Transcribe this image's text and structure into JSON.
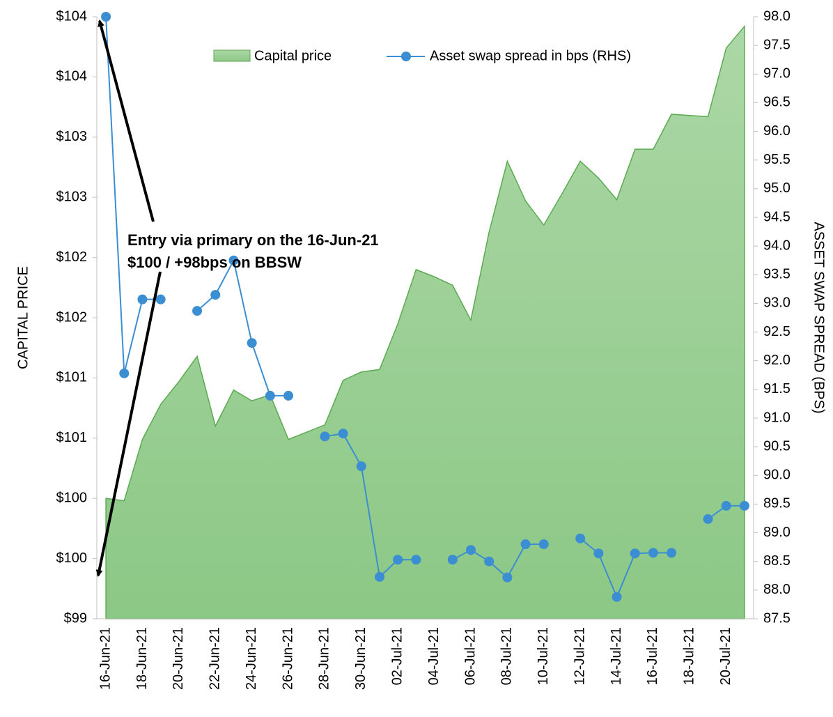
{
  "chart_data": {
    "type": "area-line",
    "categories": [
      "16-Jun-21",
      null,
      "18-Jun-21",
      null,
      "20-Jun-21",
      null,
      "22-Jun-21",
      null,
      "24-Jun-21",
      null,
      "26-Jun-21",
      null,
      "28-Jun-21",
      null,
      "30-Jun-21",
      null,
      "02-Jul-21",
      null,
      "04-Jul-21",
      null,
      "06-Jul-21",
      null,
      "08-Jul-21",
      null,
      "10-Jul-21",
      null,
      "12-Jul-21",
      null,
      "14-Jul-21",
      null,
      "16-Jul-21",
      null,
      "18-Jul-21",
      null,
      "20-Jul-21",
      null
    ],
    "series": [
      {
        "name": "Capital price",
        "color": "#8fca88",
        "values": [
          100.0,
          99.98,
          100.49,
          100.78,
          100.97,
          101.18,
          100.6,
          100.9,
          100.81,
          100.86,
          100.49,
          100.55,
          100.61,
          100.98,
          101.05,
          101.07,
          101.45,
          101.9,
          101.84,
          101.77,
          101.48,
          102.21,
          102.8,
          102.47,
          102.27,
          102.53,
          102.8,
          102.66,
          102.48,
          102.9,
          102.9,
          103.19,
          103.18,
          103.17,
          103.74,
          103.92
        ]
      },
      {
        "name": "Asset swap spread in bps (RHS)",
        "color": "#3b8ed2",
        "axis": "y2",
        "values": [
          98.0,
          91.78,
          93.07,
          93.07,
          null,
          92.87,
          93.15,
          93.75,
          92.31,
          91.39,
          91.39,
          null,
          90.68,
          90.73,
          90.16,
          88.23,
          88.53,
          88.53,
          null,
          88.53,
          88.7,
          88.5,
          88.22,
          88.8,
          88.8,
          null,
          88.9,
          88.64,
          87.88,
          88.64,
          88.65,
          88.65,
          null,
          89.24,
          89.47,
          89.47
        ]
      }
    ],
    "ylabel": "CAPITAL PRICE",
    "y2label": "ASSET SWAP SPREAD (BPS)",
    "ylim": [
      99,
      104
    ],
    "yticks": [
      {
        "value": 99,
        "label": "$99"
      },
      {
        "value": 99.5,
        "label": "$100"
      },
      {
        "value": 100,
        "label": "$100"
      },
      {
        "value": 100.5,
        "label": "$101"
      },
      {
        "value": 101,
        "label": "$101"
      },
      {
        "value": 101.5,
        "label": "$102"
      },
      {
        "value": 102,
        "label": "$102"
      },
      {
        "value": 102.5,
        "label": "$103"
      },
      {
        "value": 103,
        "label": "$103"
      },
      {
        "value": 103.5,
        "label": "$104"
      },
      {
        "value": 104,
        "label": "$104"
      }
    ],
    "y2lim": [
      87.5,
      98
    ],
    "y2ticks": [
      87.5,
      {
        "value": 88,
        "label": "88.0"
      },
      88.5,
      {
        "value": 89,
        "label": "89.0"
      },
      89.5,
      {
        "value": 90,
        "label": "90.0"
      },
      90.5,
      {
        "value": 91,
        "label": "91.0"
      },
      91.5,
      {
        "value": 92,
        "label": "92.0"
      },
      92.5,
      {
        "value": 93,
        "label": "93.0"
      },
      93.5,
      {
        "value": 94,
        "label": "94.0"
      },
      94.5,
      {
        "value": 95,
        "label": "95.0"
      },
      95.5,
      {
        "value": 96,
        "label": "96.0"
      },
      96.5,
      {
        "value": 97,
        "label": "97.0"
      },
      97.5,
      {
        "value": 98,
        "label": "98.0"
      }
    ],
    "annotations": [
      "Entry via primary on the 16-Jun-21",
      "$100 / +98bps on BBSW"
    ],
    "legend": "top",
    "grid": false
  }
}
